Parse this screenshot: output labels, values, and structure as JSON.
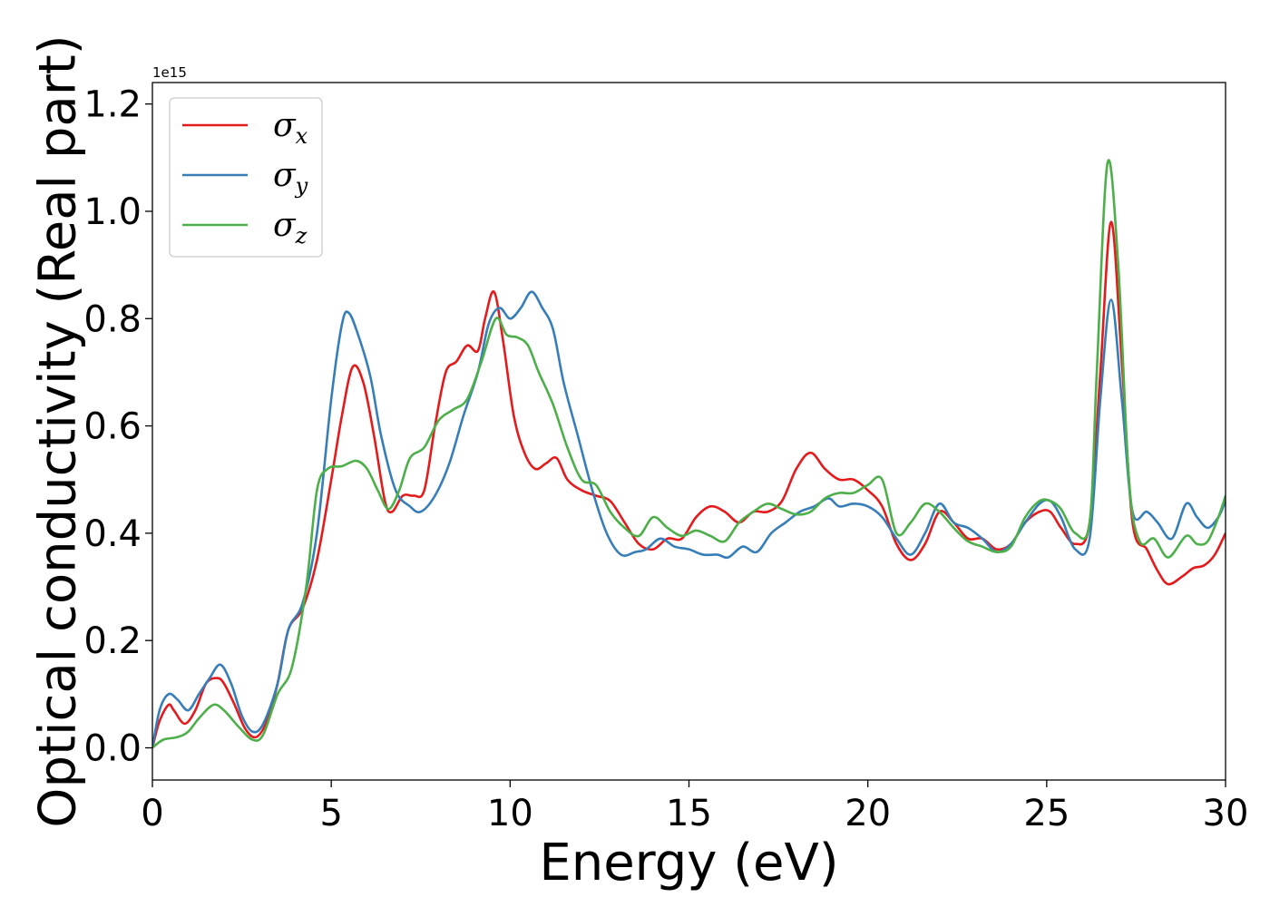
{
  "chart_data": {
    "type": "line",
    "xlabel": "Energy (eV)",
    "ylabel": "Optical conductivity (Real part)",
    "offset_text": "1e15",
    "xlim": [
      0,
      30
    ],
    "ylim": [
      -0.06,
      1.24
    ],
    "xticks": [
      0,
      5,
      10,
      15,
      20,
      25,
      30
    ],
    "xtick_labels": [
      "0",
      "5",
      "10",
      "15",
      "20",
      "25",
      "30"
    ],
    "yticks": [
      0.0,
      0.2,
      0.4,
      0.6,
      0.8,
      1.0,
      1.2
    ],
    "ytick_labels": [
      "0.0",
      "0.2",
      "0.4",
      "0.6",
      "0.8",
      "1.0",
      "1.2"
    ],
    "grid": false,
    "legend_position": "upper-left",
    "y_scale_note": "values in units of 1e15",
    "series": [
      {
        "name": "σx",
        "legend_symbol": "σ",
        "legend_sub": "x",
        "color": "#e41a1c",
        "points": [
          [
            0,
            0.0
          ],
          [
            0.2,
            0.05
          ],
          [
            0.45,
            0.08
          ],
          [
            0.6,
            0.07
          ],
          [
            0.9,
            0.045
          ],
          [
            1.2,
            0.07
          ],
          [
            1.5,
            0.12
          ],
          [
            1.8,
            0.13
          ],
          [
            2.0,
            0.12
          ],
          [
            2.3,
            0.08
          ],
          [
            2.6,
            0.035
          ],
          [
            2.9,
            0.02
          ],
          [
            3.2,
            0.05
          ],
          [
            3.5,
            0.12
          ],
          [
            3.8,
            0.22
          ],
          [
            4.2,
            0.26
          ],
          [
            4.6,
            0.35
          ],
          [
            5.0,
            0.5
          ],
          [
            5.3,
            0.62
          ],
          [
            5.6,
            0.71
          ],
          [
            5.9,
            0.68
          ],
          [
            6.2,
            0.58
          ],
          [
            6.5,
            0.46
          ],
          [
            6.7,
            0.44
          ],
          [
            7.0,
            0.47
          ],
          [
            7.3,
            0.47
          ],
          [
            7.6,
            0.48
          ],
          [
            7.9,
            0.6
          ],
          [
            8.2,
            0.7
          ],
          [
            8.5,
            0.72
          ],
          [
            8.8,
            0.75
          ],
          [
            9.1,
            0.74
          ],
          [
            9.3,
            0.8
          ],
          [
            9.55,
            0.85
          ],
          [
            9.8,
            0.76
          ],
          [
            10.1,
            0.62
          ],
          [
            10.4,
            0.55
          ],
          [
            10.7,
            0.52
          ],
          [
            11.0,
            0.53
          ],
          [
            11.3,
            0.54
          ],
          [
            11.6,
            0.5
          ],
          [
            12.0,
            0.48
          ],
          [
            12.4,
            0.47
          ],
          [
            12.8,
            0.46
          ],
          [
            13.2,
            0.42
          ],
          [
            13.6,
            0.38
          ],
          [
            14.0,
            0.37
          ],
          [
            14.4,
            0.39
          ],
          [
            14.8,
            0.39
          ],
          [
            15.2,
            0.43
          ],
          [
            15.6,
            0.45
          ],
          [
            16.0,
            0.44
          ],
          [
            16.4,
            0.42
          ],
          [
            16.8,
            0.44
          ],
          [
            17.2,
            0.44
          ],
          [
            17.6,
            0.46
          ],
          [
            18.0,
            0.52
          ],
          [
            18.4,
            0.55
          ],
          [
            18.8,
            0.52
          ],
          [
            19.2,
            0.5
          ],
          [
            19.6,
            0.5
          ],
          [
            20.0,
            0.48
          ],
          [
            20.4,
            0.45
          ],
          [
            20.8,
            0.38
          ],
          [
            21.2,
            0.35
          ],
          [
            21.6,
            0.38
          ],
          [
            22.0,
            0.44
          ],
          [
            22.4,
            0.42
          ],
          [
            22.8,
            0.39
          ],
          [
            23.2,
            0.39
          ],
          [
            23.6,
            0.37
          ],
          [
            24.0,
            0.38
          ],
          [
            24.4,
            0.42
          ],
          [
            24.8,
            0.44
          ],
          [
            25.1,
            0.44
          ],
          [
            25.4,
            0.41
          ],
          [
            25.8,
            0.38
          ],
          [
            26.2,
            0.42
          ],
          [
            26.5,
            0.7
          ],
          [
            26.8,
            0.98
          ],
          [
            27.1,
            0.72
          ],
          [
            27.4,
            0.42
          ],
          [
            27.8,
            0.37
          ],
          [
            28.1,
            0.33
          ],
          [
            28.4,
            0.305
          ],
          [
            28.8,
            0.32
          ],
          [
            29.1,
            0.335
          ],
          [
            29.4,
            0.34
          ],
          [
            29.7,
            0.36
          ],
          [
            30.0,
            0.4
          ]
        ]
      },
      {
        "name": "σy",
        "legend_symbol": "σ",
        "legend_sub": "y",
        "color": "#377eb8",
        "points": [
          [
            0,
            0.0
          ],
          [
            0.2,
            0.07
          ],
          [
            0.45,
            0.1
          ],
          [
            0.7,
            0.09
          ],
          [
            1.0,
            0.07
          ],
          [
            1.3,
            0.1
          ],
          [
            1.6,
            0.13
          ],
          [
            1.9,
            0.155
          ],
          [
            2.2,
            0.12
          ],
          [
            2.5,
            0.06
          ],
          [
            2.8,
            0.03
          ],
          [
            3.1,
            0.045
          ],
          [
            3.5,
            0.12
          ],
          [
            3.8,
            0.22
          ],
          [
            4.2,
            0.27
          ],
          [
            4.6,
            0.4
          ],
          [
            5.0,
            0.65
          ],
          [
            5.3,
            0.79
          ],
          [
            5.5,
            0.81
          ],
          [
            5.8,
            0.76
          ],
          [
            6.1,
            0.69
          ],
          [
            6.4,
            0.58
          ],
          [
            6.8,
            0.48
          ],
          [
            7.2,
            0.45
          ],
          [
            7.5,
            0.44
          ],
          [
            7.9,
            0.47
          ],
          [
            8.3,
            0.53
          ],
          [
            8.7,
            0.62
          ],
          [
            9.1,
            0.7
          ],
          [
            9.4,
            0.79
          ],
          [
            9.7,
            0.82
          ],
          [
            10.0,
            0.8
          ],
          [
            10.3,
            0.82
          ],
          [
            10.6,
            0.85
          ],
          [
            10.9,
            0.82
          ],
          [
            11.2,
            0.78
          ],
          [
            11.5,
            0.68
          ],
          [
            11.9,
            0.58
          ],
          [
            12.3,
            0.48
          ],
          [
            12.7,
            0.4
          ],
          [
            13.1,
            0.36
          ],
          [
            13.5,
            0.365
          ],
          [
            13.8,
            0.37
          ],
          [
            14.2,
            0.39
          ],
          [
            14.6,
            0.375
          ],
          [
            15.0,
            0.37
          ],
          [
            15.4,
            0.36
          ],
          [
            15.8,
            0.36
          ],
          [
            16.1,
            0.355
          ],
          [
            16.5,
            0.375
          ],
          [
            16.9,
            0.365
          ],
          [
            17.3,
            0.4
          ],
          [
            17.7,
            0.42
          ],
          [
            18.1,
            0.44
          ],
          [
            18.5,
            0.45
          ],
          [
            18.9,
            0.465
          ],
          [
            19.2,
            0.45
          ],
          [
            19.6,
            0.455
          ],
          [
            20.0,
            0.45
          ],
          [
            20.4,
            0.43
          ],
          [
            20.8,
            0.39
          ],
          [
            21.2,
            0.36
          ],
          [
            21.6,
            0.4
          ],
          [
            22.0,
            0.455
          ],
          [
            22.4,
            0.42
          ],
          [
            22.8,
            0.41
          ],
          [
            23.2,
            0.39
          ],
          [
            23.6,
            0.365
          ],
          [
            24.0,
            0.38
          ],
          [
            24.4,
            0.42
          ],
          [
            24.8,
            0.455
          ],
          [
            25.1,
            0.46
          ],
          [
            25.4,
            0.43
          ],
          [
            25.8,
            0.37
          ],
          [
            26.2,
            0.39
          ],
          [
            26.5,
            0.65
          ],
          [
            26.8,
            0.835
          ],
          [
            27.1,
            0.65
          ],
          [
            27.4,
            0.44
          ],
          [
            27.8,
            0.44
          ],
          [
            28.1,
            0.42
          ],
          [
            28.5,
            0.39
          ],
          [
            28.9,
            0.455
          ],
          [
            29.2,
            0.43
          ],
          [
            29.5,
            0.41
          ],
          [
            29.8,
            0.43
          ],
          [
            30.0,
            0.46
          ]
        ]
      },
      {
        "name": "σz",
        "legend_symbol": "σ",
        "legend_sub": "z",
        "color": "#4daf4a",
        "points": [
          [
            0,
            0.0
          ],
          [
            0.3,
            0.015
          ],
          [
            0.7,
            0.02
          ],
          [
            1.0,
            0.03
          ],
          [
            1.3,
            0.055
          ],
          [
            1.7,
            0.08
          ],
          [
            2.0,
            0.07
          ],
          [
            2.4,
            0.04
          ],
          [
            2.8,
            0.015
          ],
          [
            3.1,
            0.025
          ],
          [
            3.5,
            0.1
          ],
          [
            3.9,
            0.15
          ],
          [
            4.3,
            0.3
          ],
          [
            4.6,
            0.48
          ],
          [
            4.9,
            0.52
          ],
          [
            5.3,
            0.525
          ],
          [
            5.7,
            0.535
          ],
          [
            6.0,
            0.52
          ],
          [
            6.3,
            0.48
          ],
          [
            6.6,
            0.445
          ],
          [
            6.9,
            0.48
          ],
          [
            7.2,
            0.54
          ],
          [
            7.6,
            0.56
          ],
          [
            8.0,
            0.61
          ],
          [
            8.4,
            0.63
          ],
          [
            8.8,
            0.65
          ],
          [
            9.2,
            0.72
          ],
          [
            9.6,
            0.8
          ],
          [
            9.9,
            0.77
          ],
          [
            10.2,
            0.765
          ],
          [
            10.5,
            0.75
          ],
          [
            10.8,
            0.7
          ],
          [
            11.2,
            0.64
          ],
          [
            11.6,
            0.56
          ],
          [
            12.0,
            0.5
          ],
          [
            12.4,
            0.49
          ],
          [
            12.8,
            0.44
          ],
          [
            13.2,
            0.41
          ],
          [
            13.6,
            0.395
          ],
          [
            14.0,
            0.43
          ],
          [
            14.4,
            0.41
          ],
          [
            14.8,
            0.395
          ],
          [
            15.2,
            0.405
          ],
          [
            15.6,
            0.395
          ],
          [
            16.0,
            0.385
          ],
          [
            16.4,
            0.42
          ],
          [
            16.8,
            0.44
          ],
          [
            17.2,
            0.455
          ],
          [
            17.6,
            0.445
          ],
          [
            18.0,
            0.435
          ],
          [
            18.4,
            0.44
          ],
          [
            18.8,
            0.465
          ],
          [
            19.2,
            0.475
          ],
          [
            19.6,
            0.475
          ],
          [
            20.0,
            0.49
          ],
          [
            20.4,
            0.5
          ],
          [
            20.8,
            0.4
          ],
          [
            21.2,
            0.42
          ],
          [
            21.6,
            0.455
          ],
          [
            22.0,
            0.44
          ],
          [
            22.4,
            0.41
          ],
          [
            22.8,
            0.385
          ],
          [
            23.2,
            0.375
          ],
          [
            23.6,
            0.365
          ],
          [
            24.0,
            0.375
          ],
          [
            24.4,
            0.43
          ],
          [
            24.8,
            0.46
          ],
          [
            25.1,
            0.46
          ],
          [
            25.4,
            0.445
          ],
          [
            25.8,
            0.4
          ],
          [
            26.2,
            0.42
          ],
          [
            26.4,
            0.7
          ],
          [
            26.7,
            1.09
          ],
          [
            27.0,
            0.9
          ],
          [
            27.3,
            0.5
          ],
          [
            27.6,
            0.385
          ],
          [
            28.0,
            0.39
          ],
          [
            28.4,
            0.355
          ],
          [
            28.9,
            0.395
          ],
          [
            29.2,
            0.38
          ],
          [
            29.5,
            0.385
          ],
          [
            29.8,
            0.43
          ],
          [
            30.0,
            0.47
          ]
        ]
      }
    ]
  }
}
